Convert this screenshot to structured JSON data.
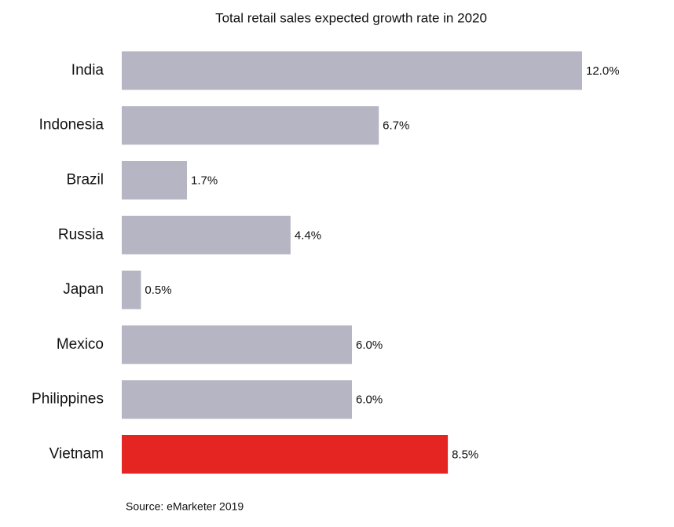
{
  "chart_data": {
    "type": "bar",
    "orientation": "horizontal",
    "title": "Total retail sales expected growth rate in 2020",
    "categories": [
      "India",
      "Indonesia",
      "Brazil",
      "Russia",
      "Japan",
      "Mexico",
      "Philippines",
      "Vietnam"
    ],
    "values": [
      12.0,
      6.7,
      1.7,
      4.4,
      0.5,
      6.0,
      6.0,
      8.5
    ],
    "value_labels": [
      "12.0%",
      "6.7%",
      "1.7%",
      "4.4%",
      "0.5%",
      "6.0%",
      "6.0%",
      "8.5%"
    ],
    "colors": [
      "#b5b5c3",
      "#b5b5c3",
      "#b5b5c3",
      "#b5b5c3",
      "#b5b5c3",
      "#b5b5c3",
      "#b5b5c3",
      "#e52521"
    ],
    "source": "Source: eMarketer 2019"
  }
}
